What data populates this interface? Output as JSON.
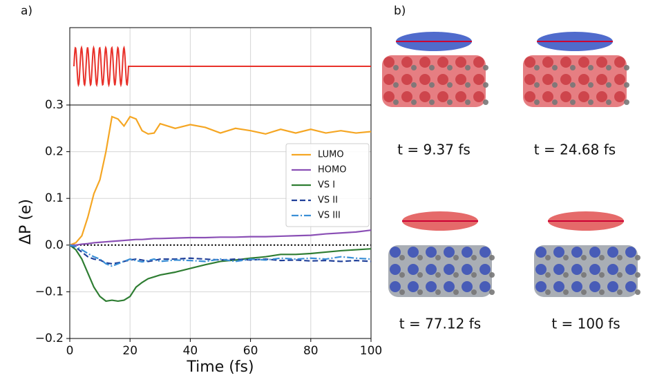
{
  "chart_data": {
    "type": "line",
    "panel_label": "a)",
    "ylabel": "ΔP (e)",
    "xlabel": "Time (fs)",
    "x": [
      0,
      2,
      4,
      6,
      8,
      10,
      12,
      14,
      16,
      18,
      20,
      22,
      24,
      26,
      28,
      30,
      35,
      40,
      45,
      50,
      55,
      60,
      65,
      70,
      75,
      80,
      85,
      90,
      95,
      100
    ],
    "series": [
      {
        "name": "LUMO",
        "color": "#f5a623",
        "dash": "solid",
        "values": [
          0,
          0.005,
          0.02,
          0.06,
          0.11,
          0.14,
          0.2,
          0.275,
          0.27,
          0.255,
          0.275,
          0.27,
          0.245,
          0.238,
          0.24,
          0.26,
          0.25,
          0.258,
          0.252,
          0.24,
          0.25,
          0.245,
          0.238,
          0.248,
          0.24,
          0.248,
          0.24,
          0.245,
          0.24,
          0.243
        ]
      },
      {
        "name": "HOMO",
        "color": "#8a4fb5",
        "dash": "solid",
        "values": [
          0,
          0,
          0.002,
          0.003,
          0.005,
          0.006,
          0.007,
          0.008,
          0.009,
          0.01,
          0.011,
          0.012,
          0.012,
          0.013,
          0.014,
          0.014,
          0.015,
          0.016,
          0.016,
          0.017,
          0.017,
          0.018,
          0.018,
          0.019,
          0.02,
          0.021,
          0.024,
          0.026,
          0.028,
          0.032
        ]
      },
      {
        "name": "VS I",
        "color": "#2e7d32",
        "dash": "solid",
        "values": [
          0,
          -0.01,
          -0.03,
          -0.06,
          -0.09,
          -0.11,
          -0.12,
          -0.118,
          -0.12,
          -0.118,
          -0.11,
          -0.09,
          -0.08,
          -0.072,
          -0.068,
          -0.064,
          -0.058,
          -0.05,
          -0.042,
          -0.035,
          -0.032,
          -0.028,
          -0.025,
          -0.02,
          -0.02,
          -0.018,
          -0.015,
          -0.012,
          -0.01,
          -0.008
        ]
      },
      {
        "name": "VS II",
        "color": "#1f3f99",
        "dash": "dashed",
        "values": [
          0,
          -0.005,
          -0.015,
          -0.025,
          -0.03,
          -0.032,
          -0.038,
          -0.04,
          -0.038,
          -0.035,
          -0.032,
          -0.03,
          -0.032,
          -0.035,
          -0.033,
          -0.03,
          -0.03,
          -0.028,
          -0.03,
          -0.032,
          -0.03,
          -0.032,
          -0.03,
          -0.033,
          -0.032,
          -0.034,
          -0.033,
          -0.035,
          -0.033,
          -0.035
        ]
      },
      {
        "name": "VS III",
        "color": "#3a8fd6",
        "dash": "dashdot",
        "values": [
          0,
          -0.003,
          -0.01,
          -0.018,
          -0.025,
          -0.03,
          -0.04,
          -0.045,
          -0.04,
          -0.035,
          -0.03,
          -0.033,
          -0.036,
          -0.033,
          -0.03,
          -0.035,
          -0.032,
          -0.033,
          -0.035,
          -0.03,
          -0.035,
          -0.03,
          -0.032,
          -0.028,
          -0.03,
          -0.028,
          -0.03,
          -0.025,
          -0.028,
          -0.03
        ]
      }
    ],
    "xlim": [
      0,
      100
    ],
    "xticks": [
      0,
      20,
      40,
      60,
      80,
      100
    ],
    "ylim": [
      -0.2,
      0.3
    ],
    "yticks": [
      {
        "value": -0.2,
        "label": "−0.2"
      },
      {
        "value": -0.1,
        "label": "−0.1"
      },
      {
        "value": 0,
        "label": "0.0"
      },
      0.1,
      0.2,
      0.3
    ],
    "grid": true,
    "legend": "center right"
  },
  "panel_b": {
    "label": "b)",
    "snapshots": [
      {
        "caption": "t = 9.37 fs"
      },
      {
        "caption": "t = 24.68 fs"
      },
      {
        "caption": "t = 77.12 fs"
      },
      {
        "caption": "t = 100 fs"
      }
    ]
  }
}
